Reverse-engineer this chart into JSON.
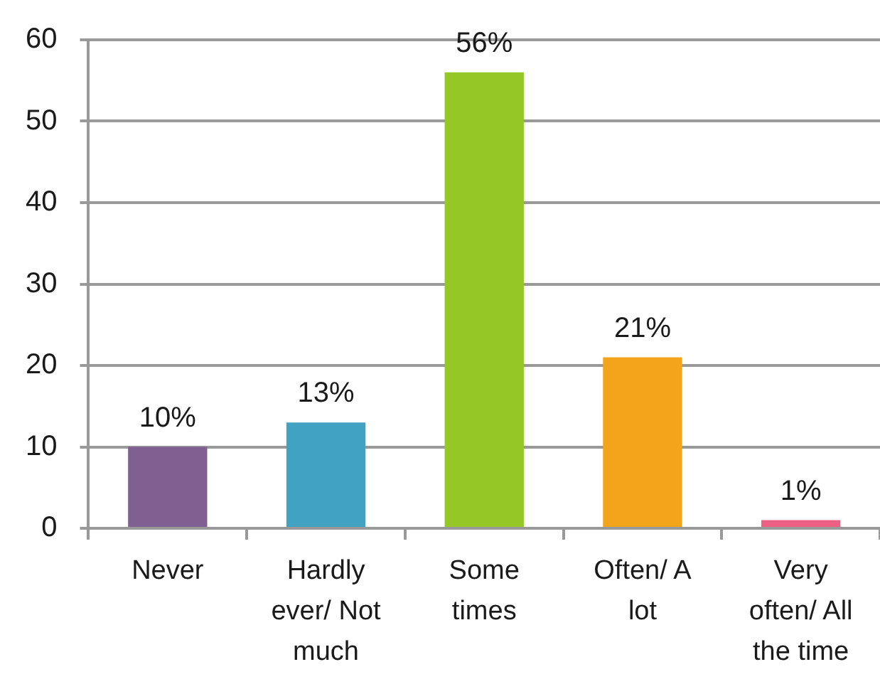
{
  "chart_data": {
    "type": "bar",
    "categories": [
      "Never",
      "Hardly ever/ Not much",
      "Some times",
      "Often/ A lot",
      "Very often/ All the time"
    ],
    "values": [
      10,
      13,
      56,
      21,
      1
    ],
    "colors": [
      "#7f6091",
      "#42a2c2",
      "#95c727",
      "#f4a41b",
      "#ee5f84"
    ],
    "value_labels": [
      "10%",
      "13%",
      "56%",
      "21%",
      "1%"
    ],
    "ylim": [
      0,
      60
    ],
    "yticks": [
      0,
      10,
      20,
      30,
      40,
      50,
      60
    ],
    "grid": "y"
  }
}
